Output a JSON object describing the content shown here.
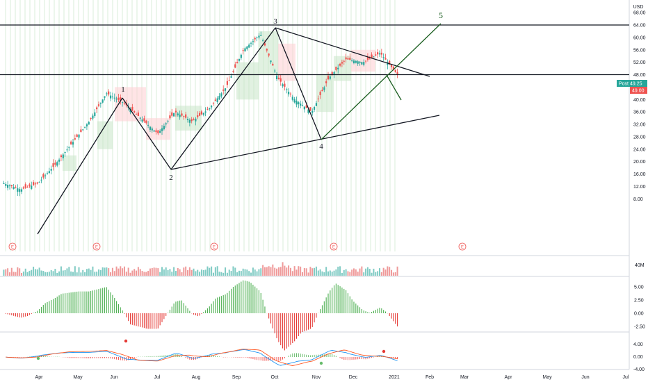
{
  "chart_data": {
    "type": "candlestick",
    "currency_label": "USD",
    "price_axis": {
      "ticks": [
        "68.00",
        "64.00",
        "60.00",
        "56.00",
        "52.00",
        "48.00",
        "44.00",
        "40.00",
        "36.00",
        "32.00",
        "28.00",
        "24.00",
        "20.00",
        "16.00",
        "12.00",
        "8.00"
      ],
      "range": [
        8,
        68
      ]
    },
    "month_labels": [
      "Apr",
      "May",
      "Jun",
      "Jul",
      "Aug",
      "Sep",
      "Oct",
      "Nov",
      "Dec",
      "2021",
      "Feb",
      "Mar",
      "Apr",
      "May",
      "Jun",
      "Jul"
    ],
    "horizontal_levels": [
      64.0,
      48.0
    ],
    "price_tags": [
      {
        "label": "Post",
        "value": "49.25",
        "color": "#26a69a"
      },
      {
        "label": "",
        "value": "49.00",
        "color": "#ef5350"
      }
    ],
    "wave_labels": [
      "1",
      "2",
      "3",
      "4",
      "5"
    ],
    "earnings_marker": "E",
    "earnings_count": 5,
    "volume_axis": {
      "label": "40M"
    },
    "macd_histogram_axis": {
      "ticks": [
        "5.00",
        "2.50",
        "0.00",
        "-2.50"
      ]
    },
    "macd_lines_axis": {
      "ticks": [
        "4.00",
        "0.00",
        "-4.00"
      ]
    },
    "price_series": [
      {
        "x": "Mar 20",
        "y": 13
      },
      {
        "x": "Apr 03",
        "y": 11
      },
      {
        "x": "Apr 17",
        "y": 13
      },
      {
        "x": "May 01",
        "y": 19
      },
      {
        "x": "May 15",
        "y": 26
      },
      {
        "x": "May 29",
        "y": 33
      },
      {
        "x": "Jun 08",
        "y": 42
      },
      {
        "x": "Jun 19",
        "y": 39
      },
      {
        "x": "Jul 02",
        "y": 34
      },
      {
        "x": "Jul 15",
        "y": 29
      },
      {
        "x": "Jul 29",
        "y": 36
      },
      {
        "x": "Aug 12",
        "y": 33
      },
      {
        "x": "Aug 26",
        "y": 37
      },
      {
        "x": "Sep 09",
        "y": 44
      },
      {
        "x": "Sep 23",
        "y": 56
      },
      {
        "x": "Oct 02",
        "y": 61
      },
      {
        "x": "Oct 14",
        "y": 47
      },
      {
        "x": "Oct 28",
        "y": 40
      },
      {
        "x": "Nov 04",
        "y": 36
      },
      {
        "x": "Nov 18",
        "y": 47
      },
      {
        "x": "Dec 02",
        "y": 53
      },
      {
        "x": "Dec 16",
        "y": 52
      },
      {
        "x": "Dec 24",
        "y": 55
      },
      {
        "x": "Dec 30",
        "y": 48
      }
    ]
  }
}
